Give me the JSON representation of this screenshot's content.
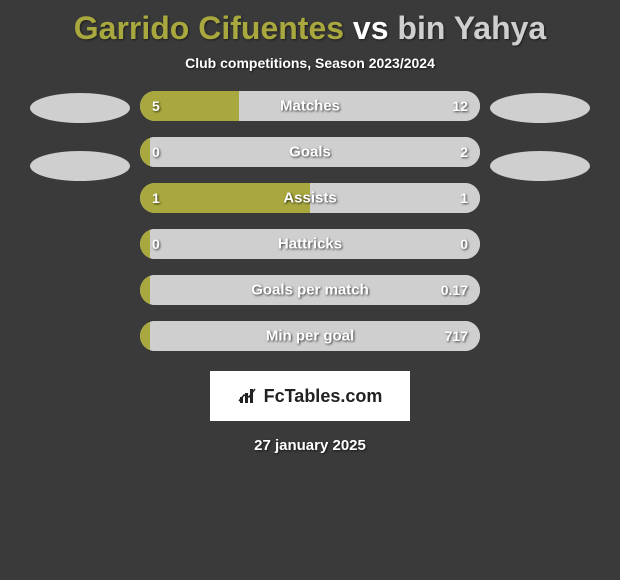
{
  "title": {
    "player1": "Garrido Cifuentes",
    "vs": "vs",
    "player2": "bin Yahya",
    "player1_color": "#a8a83e",
    "vs_color": "#ffffff",
    "player2_color": "#cfcfcf"
  },
  "subtitle": "Club competitions, Season 2023/2024",
  "colors": {
    "left": "#a8a83e",
    "right": "#cfcfcf",
    "background": "#3a3a3a",
    "bar_track": "#cfcfcf"
  },
  "avatars": {
    "left": "#cfcfcf",
    "right": "#cfcfcf"
  },
  "stats": [
    {
      "label": "Matches",
      "left_value": "5",
      "right_value": "12",
      "left_pct": 29,
      "right_pct": 71
    },
    {
      "label": "Goals",
      "left_value": "0",
      "right_value": "2",
      "left_pct": 3,
      "right_pct": 97
    },
    {
      "label": "Assists",
      "left_value": "1",
      "right_value": "1",
      "left_pct": 50,
      "right_pct": 50
    },
    {
      "label": "Hattricks",
      "left_value": "0",
      "right_value": "0",
      "left_pct": 3,
      "right_pct": 97
    },
    {
      "label": "Goals per match",
      "left_value": "",
      "right_value": "0.17",
      "left_pct": 3,
      "right_pct": 97
    },
    {
      "label": "Min per goal",
      "left_value": "",
      "right_value": "717",
      "left_pct": 3,
      "right_pct": 97
    }
  ],
  "logo": {
    "text": "FcTables.com"
  },
  "date": "27 january 2025"
}
